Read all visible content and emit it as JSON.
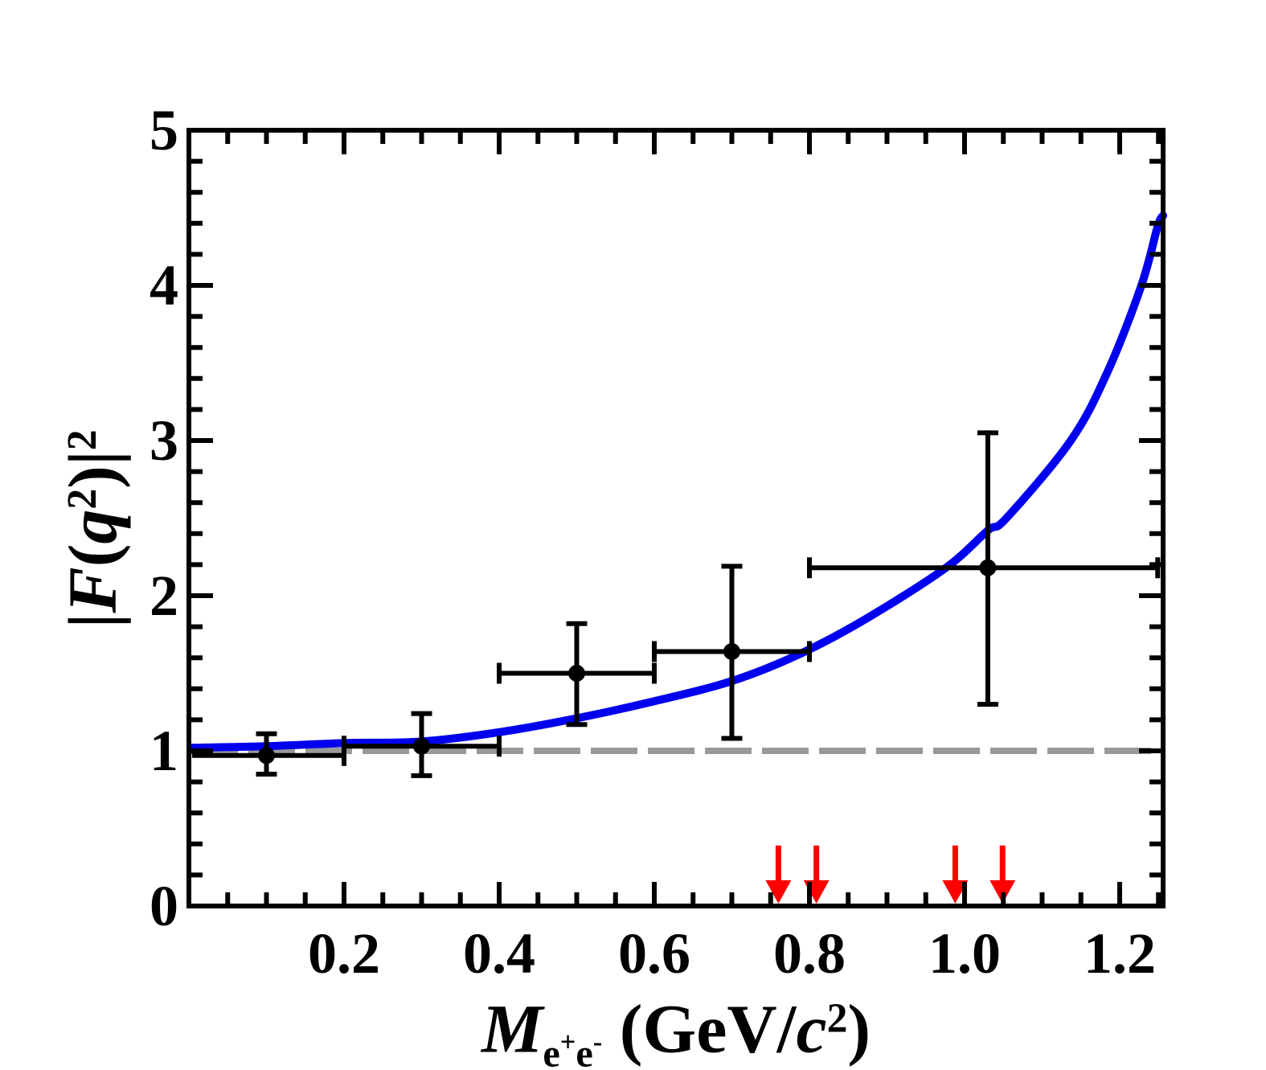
{
  "chart_data": {
    "type": "scatter",
    "title": "",
    "xlabel": "M_e+e- (GeV/c2)",
    "ylabel": "|F(q2)|2",
    "xlim": [
      0,
      1.256
    ],
    "ylim": [
      0,
      5
    ],
    "grid": false,
    "legend": null,
    "x_major_ticks": {
      "values": [
        0.2,
        0.4,
        0.6,
        0.8,
        1.0,
        1.2
      ],
      "labels": [
        "0.2",
        "0.4",
        "0.6",
        "0.8",
        "1.0",
        "1.2"
      ]
    },
    "x_minor_tick_step": 0.05,
    "y_major_ticks": {
      "values": [
        0,
        1,
        2,
        3,
        4,
        5
      ],
      "labels": [
        "0",
        "1",
        "2",
        "3",
        "4",
        "5"
      ]
    },
    "y_minor_tick_step": 0.2,
    "reference_line": {
      "y": 1.0,
      "style": "dashed",
      "color": "#999999"
    },
    "fit_curve": {
      "name": "form-factor-fit-curve",
      "color": "#0000ee",
      "points": [
        [
          0.004,
          1.02
        ],
        [
          0.1,
          1.03
        ],
        [
          0.2,
          1.05
        ],
        [
          0.3,
          1.06
        ],
        [
          0.4,
          1.12
        ],
        [
          0.5,
          1.21
        ],
        [
          0.6,
          1.32
        ],
        [
          0.7,
          1.45
        ],
        [
          0.79,
          1.63
        ],
        [
          0.876,
          1.86
        ],
        [
          0.976,
          2.18
        ],
        [
          1.03,
          2.42
        ],
        [
          1.054,
          2.5
        ],
        [
          1.137,
          3.0
        ],
        [
          1.185,
          3.45
        ],
        [
          1.228,
          4.0
        ],
        [
          1.249,
          4.38
        ],
        [
          1.256,
          4.45
        ]
      ]
    },
    "data_points": [
      {
        "x": 0.1,
        "y": 0.97,
        "x_lo": 0.004,
        "x_hi": 0.2,
        "y_lo": 0.85,
        "y_hi": 1.11
      },
      {
        "x": 0.3,
        "y": 1.03,
        "x_lo": 0.2,
        "x_hi": 0.4,
        "y_lo": 0.84,
        "y_hi": 1.24
      },
      {
        "x": 0.5,
        "y": 1.5,
        "x_lo": 0.4,
        "x_hi": 0.6,
        "y_lo": 1.17,
        "y_hi": 1.82
      },
      {
        "x": 0.7,
        "y": 1.64,
        "x_lo": 0.6,
        "x_hi": 0.8,
        "y_lo": 1.08,
        "y_hi": 2.19
      },
      {
        "x": 1.03,
        "y": 2.18,
        "x_lo": 0.8,
        "x_hi": 1.249,
        "y_lo": 1.3,
        "y_hi": 3.05
      }
    ],
    "arrows": {
      "color": "#ff0000",
      "x_positions": [
        0.76,
        0.809,
        0.988,
        1.049
      ],
      "y_top": 0.39,
      "y_tip": 0.0
    }
  },
  "labels": {
    "x_title_parts": [
      {
        "t": "M",
        "s": "bi"
      },
      {
        "t": "e",
        "s": "sub"
      },
      {
        "t": "+",
        "s": "subsup"
      },
      {
        "t": "e",
        "s": "sub"
      },
      {
        "t": "-",
        "s": "subsup"
      },
      {
        "t": " (GeV/",
        "s": "b"
      },
      {
        "t": "c",
        "s": "bi"
      },
      {
        "t": "2",
        "s": "sup"
      },
      {
        "t": ")",
        "s": "b"
      }
    ],
    "y_title_parts": [
      {
        "t": "|",
        "s": "b"
      },
      {
        "t": "F",
        "s": "bi"
      },
      {
        "t": "(",
        "s": "b"
      },
      {
        "t": "q",
        "s": "bi"
      },
      {
        "t": "2",
        "s": "sup"
      },
      {
        "t": ")|",
        "s": "b"
      },
      {
        "t": "2",
        "s": "sup"
      }
    ]
  },
  "colors": {
    "frame": "#000000",
    "data": "#000000",
    "curve": "#0000ee",
    "arrow": "#ff0000",
    "reference": "#999999",
    "background": "#ffffff"
  }
}
